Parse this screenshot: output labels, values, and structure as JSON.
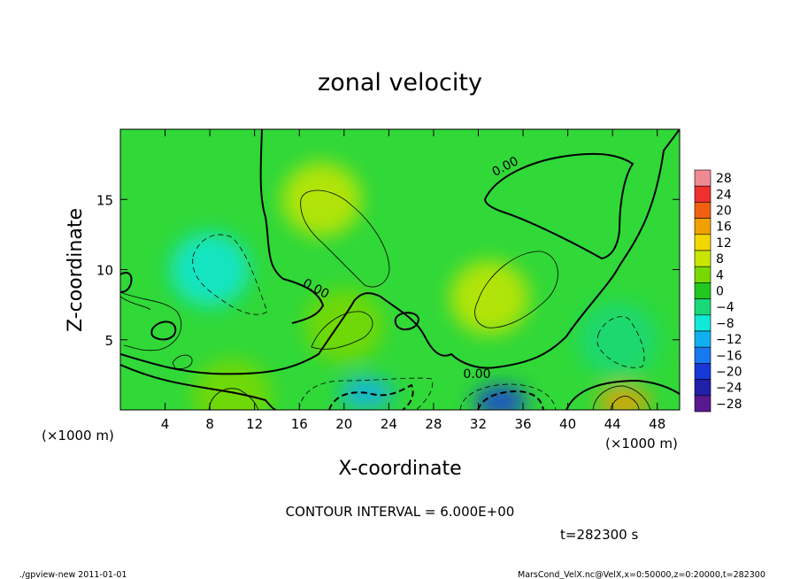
{
  "chart_data": {
    "type": "heatmap",
    "title": "zonal velocity",
    "xlabel": "X-coordinate",
    "ylabel": "Z-coordinate",
    "x_unit": "(×1000 m)",
    "x_unit_right": "(×1000 m)",
    "x_ticks": [
      "4",
      "8",
      "12",
      "16",
      "20",
      "24",
      "28",
      "32",
      "36",
      "40",
      "44",
      "48"
    ],
    "x_tick_values": [
      4,
      8,
      12,
      16,
      20,
      24,
      28,
      32,
      36,
      40,
      44,
      48
    ],
    "y_ticks": [
      "5",
      "10",
      "15"
    ],
    "y_tick_values": [
      5,
      10,
      15
    ],
    "xlim": [
      0,
      50
    ],
    "ylim": [
      0,
      20
    ],
    "colorbar": {
      "labels": [
        "28",
        "24",
        "20",
        "16",
        "12",
        "8",
        "4",
        "0",
        "−4",
        "−8",
        "−12",
        "−16",
        "−20",
        "−24",
        "−28"
      ],
      "values": [
        28,
        24,
        20,
        16,
        12,
        8,
        4,
        0,
        -4,
        -8,
        -12,
        -16,
        -20,
        -24,
        -28
      ],
      "colors": [
        "#f08a92",
        "#ee3030",
        "#f06010",
        "#f0a000",
        "#f0d800",
        "#c8e600",
        "#7ad800",
        "#20c820",
        "#18d878",
        "#10e8d8",
        "#10b0f0",
        "#1878f0",
        "#1838d8",
        "#2020a8",
        "#581890"
      ]
    },
    "contour_labels": [
      "0.00",
      "0.00",
      "0.00"
    ],
    "features": [
      {
        "x": 18,
        "z": 15,
        "value": 6
      },
      {
        "x": 8,
        "z": 10,
        "value": -8
      },
      {
        "x": 33,
        "z": 8,
        "value": 8
      },
      {
        "x": 20,
        "z": 6,
        "value": 5
      },
      {
        "x": 22,
        "z": 1.2,
        "value": -12
      },
      {
        "x": 34,
        "z": 0.6,
        "value": -20
      },
      {
        "x": 45,
        "z": 0.6,
        "value": 14
      },
      {
        "x": 44.5,
        "z": 5,
        "value": -6
      },
      {
        "x": 10,
        "z": 1,
        "value": 4
      }
    ]
  },
  "contour_interval_text": "CONTOUR INTERVAL = 6.000E+00",
  "time_text": "t=282300 s",
  "footer_left": "./gpview-new  2011-01-01",
  "footer_right": "MarsCond_VelX.nc@VelX,x=0:50000,z=0:20000,t=282300"
}
